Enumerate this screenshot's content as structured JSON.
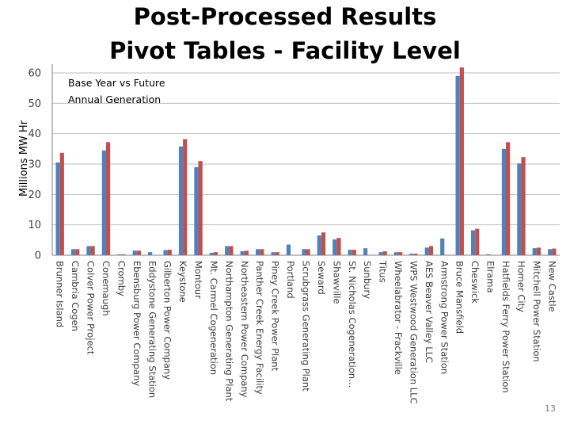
{
  "slide": {
    "title_line1": "Post-Processed Results",
    "title_line2": "Pivot Tables -  Facility Level",
    "page_number": "13"
  },
  "chart_data": {
    "type": "bar",
    "title_line1": "Base Year vs Future",
    "title_line2": "Annual Generation",
    "ylabel": "Millions MW Hr",
    "xlabel": "",
    "ylim": [
      0,
      60
    ],
    "yticks": [
      0,
      10,
      20,
      30,
      40,
      50,
      60
    ],
    "grid": true,
    "legend": "none",
    "colors": [
      "#4f81bd",
      "#c0504d"
    ],
    "categories": [
      "Brunner Island",
      "Cambria Cogen",
      "Colver Power Project",
      "Conemaugh",
      "Cromby",
      "Ebensburg Power Company",
      "Eddystone Generating Station",
      "Gilberton Power Company",
      "Keystone",
      "Montour",
      "Mt. Carmel Cogeneration",
      "Northampton Generating Plant",
      "Northeastern Power Company",
      "Panther Creek Energy Facility",
      "Piney Creek Power Plant",
      "Portland",
      "Scrubgrass Generating Plant",
      "Seward",
      "Shawville",
      "St. Nicholas Cogeneration…",
      "Sunbury",
      "Titus",
      "Wheelabrator - Frackville",
      "WPS Westwood Generation LLC",
      "AES Beaver Valley LLC",
      "Armstrong Power Station",
      "Bruce Mansfield",
      "Cheswick",
      "Elrama",
      "Hatfields Ferry Power Station",
      "Homer City",
      "Mitchell Power Station",
      "New Castle"
    ],
    "series": [
      {
        "values": [
          30.5,
          2,
          3,
          34.5,
          0.3,
          1.5,
          1,
          1.7,
          35.8,
          29,
          0.8,
          3,
          1.3,
          2,
          1,
          3.5,
          2,
          6.5,
          5.2,
          1.8,
          2.3,
          1,
          1,
          0.5,
          2.5,
          5.5,
          59,
          8.2,
          0.3,
          35,
          30.2,
          2.3,
          2
        ]
      },
      {
        "values": [
          33.7,
          2,
          3,
          37.2,
          0.3,
          1.5,
          0,
          1.8,
          38.2,
          31,
          1,
          3,
          1.5,
          2,
          1,
          0,
          2,
          7.5,
          5.7,
          1.8,
          0,
          1.3,
          1,
          0.5,
          3,
          0,
          61.8,
          8.7,
          0,
          37.2,
          32.3,
          2.5,
          2.2
        ]
      }
    ]
  }
}
